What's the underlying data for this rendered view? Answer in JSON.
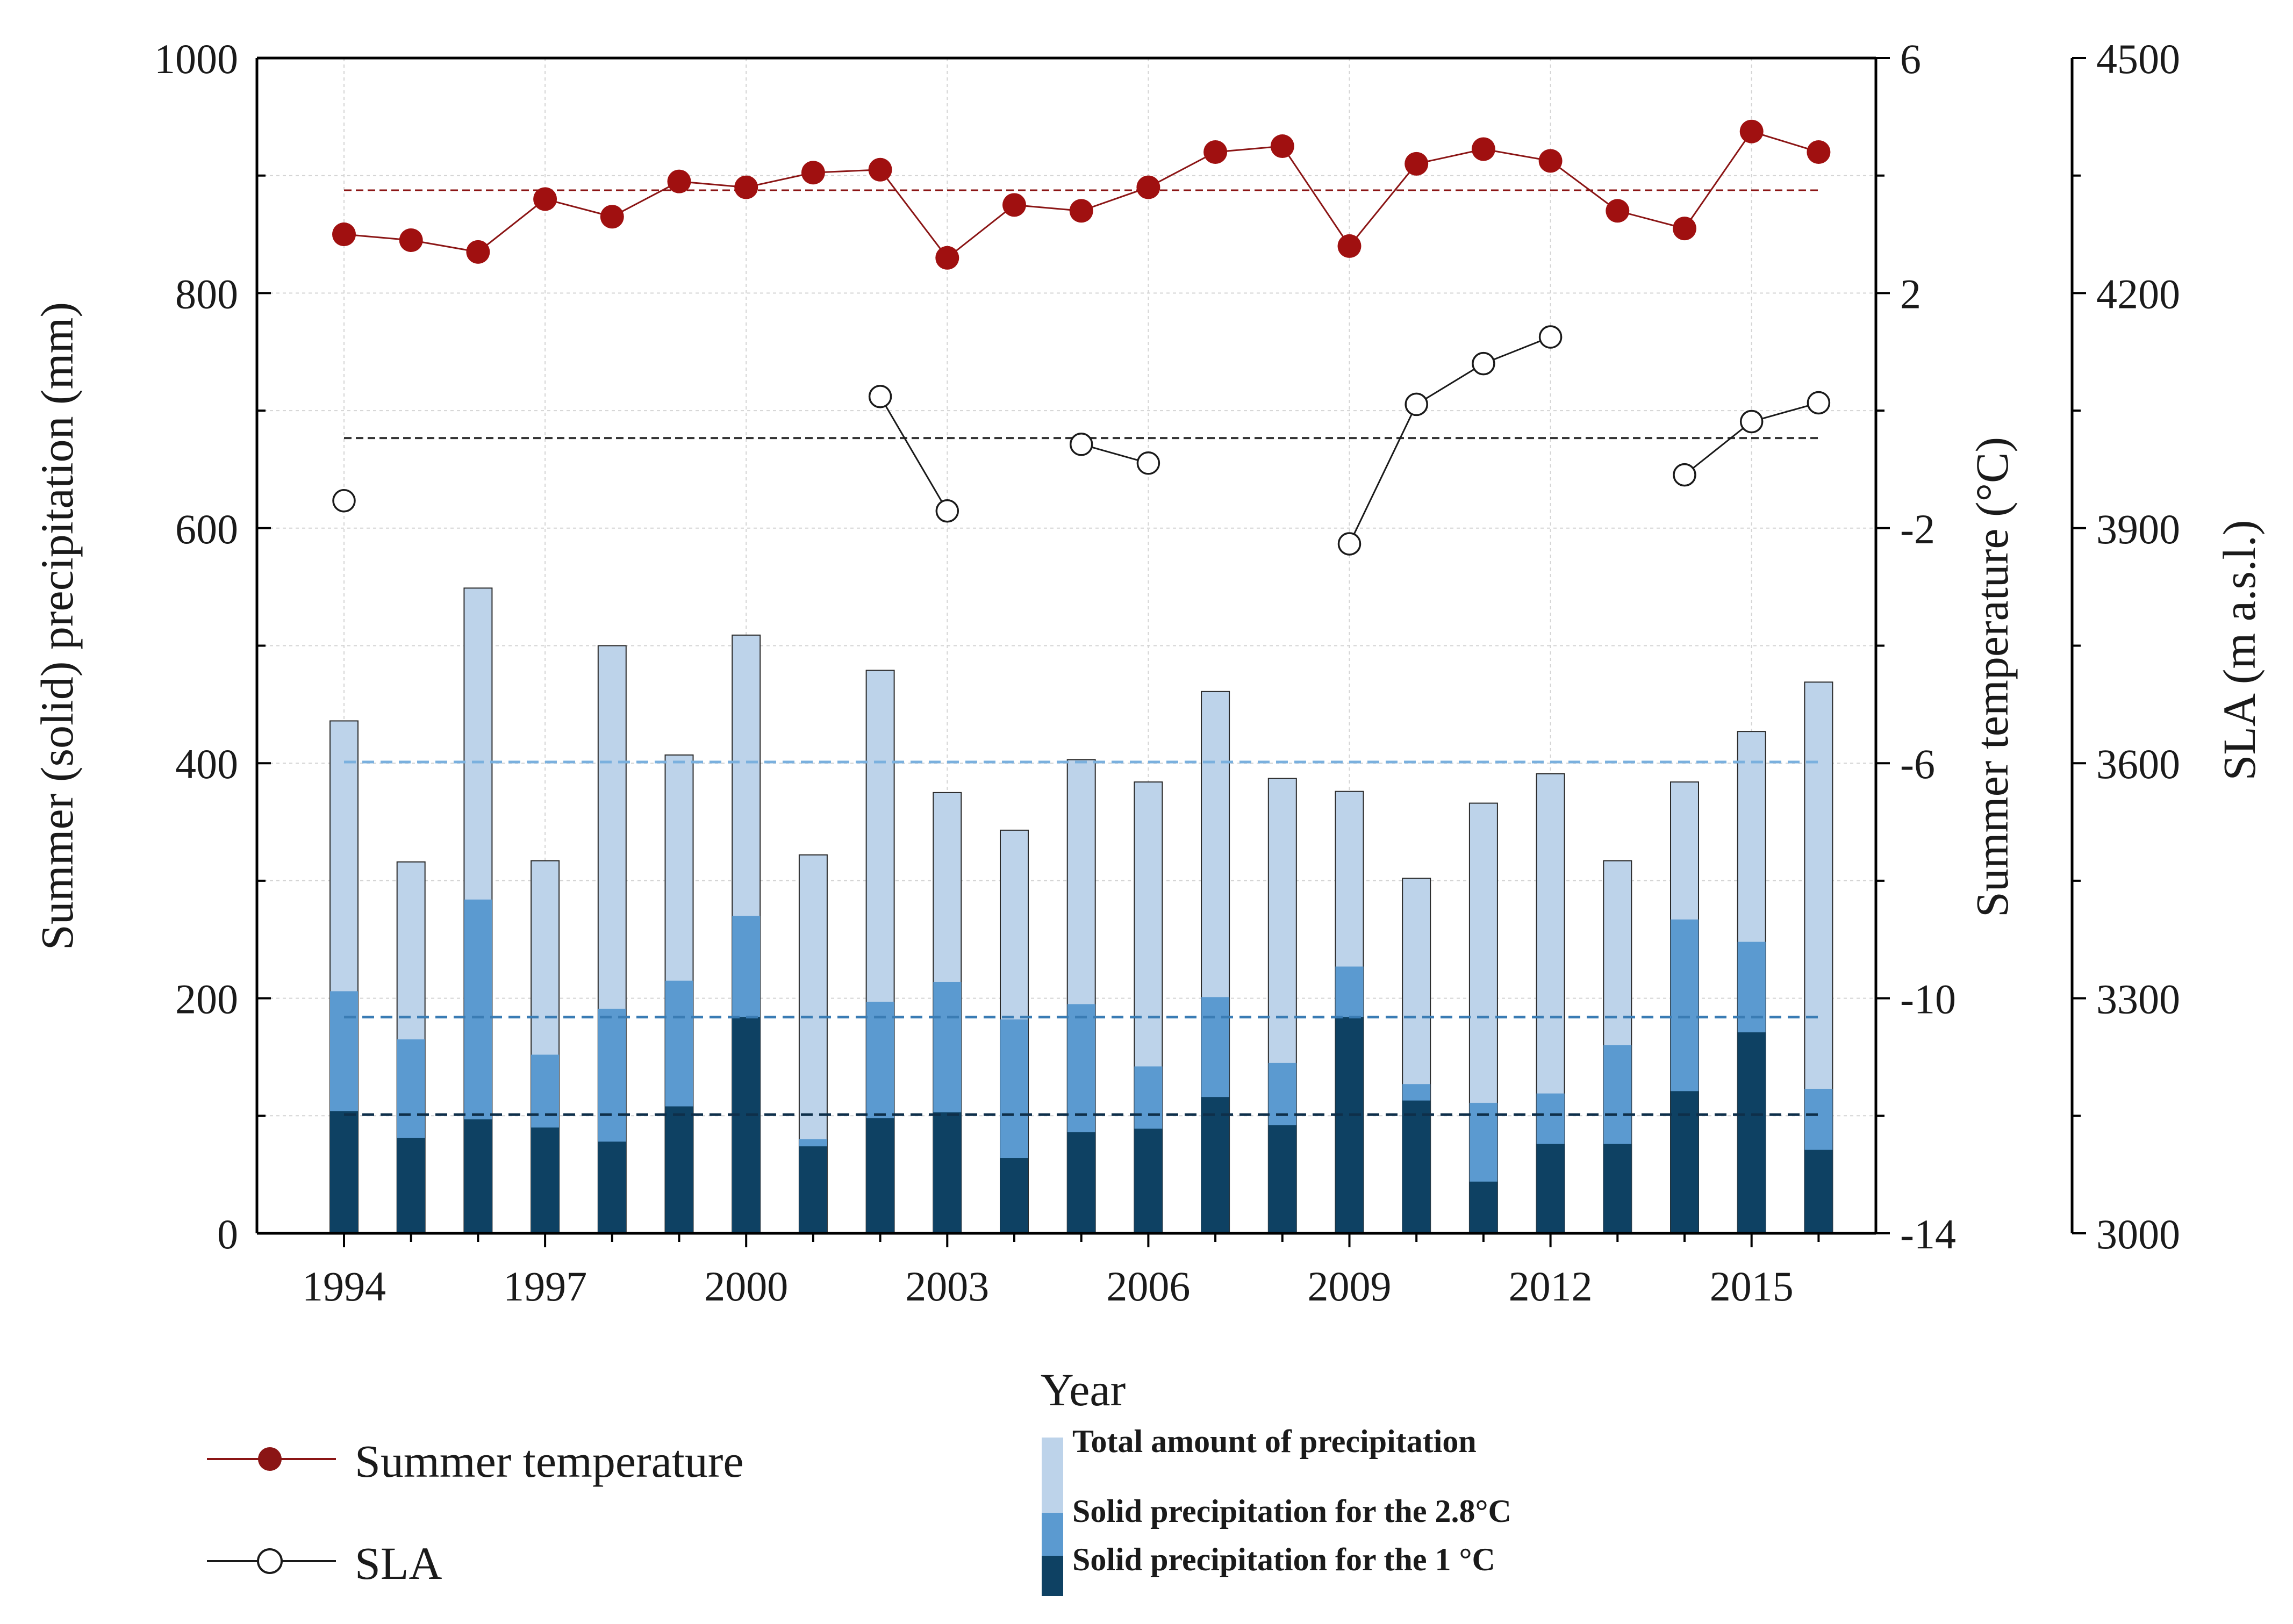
{
  "chart_data": {
    "type": "bar",
    "title": "",
    "xlabel": "Year",
    "ylabel_left": "Summer (solid) precipitation (mm)",
    "ylabel_right1": "Summer temperature (°C)",
    "ylabel_right2": "SLA (m a.s.l.)",
    "ylim_left": [
      0,
      1000
    ],
    "yticks_left": [
      0,
      200,
      400,
      600,
      800,
      1000
    ],
    "ylim_temp": [
      -14,
      6
    ],
    "yticks_temp": [
      -14,
      -10,
      -6,
      -2,
      2,
      6
    ],
    "ylim_sla": [
      3000,
      4500
    ],
    "yticks_sla": [
      3000,
      3300,
      3600,
      3900,
      4200,
      4500
    ],
    "x": [
      1994,
      1995,
      1996,
      1997,
      1998,
      1999,
      2000,
      2001,
      2002,
      2003,
      2004,
      2005,
      2006,
      2007,
      2008,
      2009,
      2010,
      2011,
      2012,
      2013,
      2014,
      2015,
      2016
    ],
    "xtick_labels": [
      "1994",
      "1997",
      "2000",
      "2003",
      "2006",
      "2009",
      "2012",
      "2015"
    ],
    "grid": true,
    "series": [
      {
        "name": "Total amount of precipitation",
        "kind": "bar",
        "color": "#bdd3ea",
        "values": [
          436,
          316,
          549,
          317,
          500,
          407,
          509,
          322,
          479,
          375,
          343,
          403,
          384,
          461,
          387,
          376,
          302,
          366,
          391,
          317,
          384,
          427,
          469
        ]
      },
      {
        "name": "Solid precipitation for the 2.8°C",
        "kind": "bar",
        "color": "#5b9ad0",
        "values": [
          206,
          165,
          284,
          152,
          191,
          215,
          270,
          80,
          197,
          214,
          182,
          195,
          142,
          201,
          145,
          227,
          127,
          111,
          119,
          160,
          267,
          248,
          123
        ]
      },
      {
        "name": "Solid precipitation for the 1 °C",
        "kind": "bar",
        "color": "#0e4163",
        "values": [
          104,
          81,
          97,
          90,
          78,
          108,
          184,
          74,
          98,
          103,
          64,
          86,
          89,
          116,
          92,
          184,
          113,
          44,
          76,
          76,
          121,
          171,
          71
        ]
      },
      {
        "name": "Summer temperature",
        "kind": "line",
        "color": "#8b1515",
        "axis": "temp",
        "values": [
          3.0,
          2.9,
          2.7,
          3.6,
          3.3,
          3.9,
          3.8,
          4.05,
          4.1,
          2.6,
          3.5,
          3.4,
          3.8,
          4.4,
          4.5,
          2.8,
          4.2,
          4.45,
          4.25,
          3.4,
          3.1,
          4.75,
          4.4
        ],
        "reference": 3.75
      },
      {
        "name": "SLA",
        "kind": "line",
        "color": "#1a1a1a",
        "axis": "sla",
        "values": [
          3935,
          null,
          null,
          null,
          null,
          null,
          null,
          null,
          null,
          3922,
          null,
          null,
          null,
          null,
          null,
          null,
          null,
          null,
          null,
          null,
          null,
          null,
          null
        ],
        "segments": [
          {
            "x": [
              2002,
              2003
            ],
            "y": [
              4068,
              3922
            ]
          },
          {
            "x": [
              2005,
              2006
            ],
            "y": [
              4007,
              3983
            ]
          },
          {
            "x": [
              2009,
              2010,
              2011,
              2012
            ],
            "y": [
              3880,
              4058,
              4110,
              4144
            ]
          },
          {
            "x": [
              2014,
              2015,
              2016
            ],
            "y": [
              3968,
              4036,
              4060
            ]
          }
        ],
        "single_points": [
          {
            "x": 1994,
            "y": 3935
          }
        ],
        "reference": 4015
      }
    ],
    "reference_lines_left": [
      {
        "value": 401,
        "color": "#7ab0de"
      },
      {
        "value": 184,
        "color": "#3a7cb4"
      },
      {
        "value": 101,
        "color": "#0e2f4a"
      }
    ],
    "legend": {
      "placement": "bottom",
      "summer_temperature": "Summer temperature",
      "sla": "SLA",
      "total": "Total amount of precipitation",
      "solid28": "Solid precipitation for the 2.8°C",
      "solid1": "Solid precipitation for the 1 °C"
    }
  }
}
